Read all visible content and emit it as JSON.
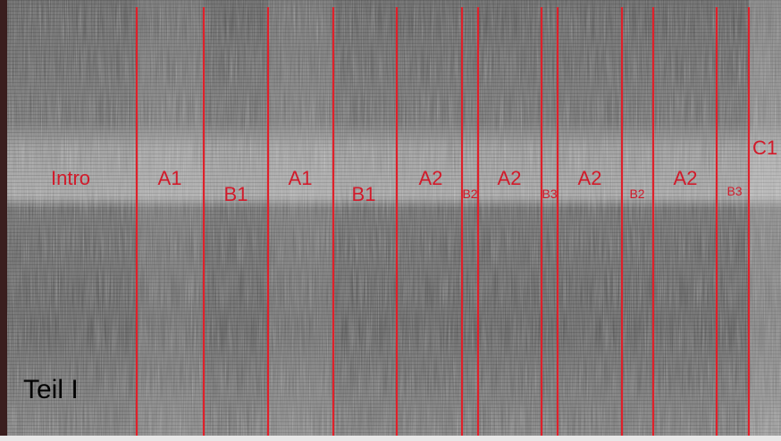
{
  "part_label": "Teil I",
  "sections": [
    "Intro",
    "A1",
    "B1",
    "A1",
    "B1",
    "A2",
    "B2",
    "A2",
    "B3",
    "A2",
    "B2",
    "A2",
    "B3",
    "C1"
  ]
}
